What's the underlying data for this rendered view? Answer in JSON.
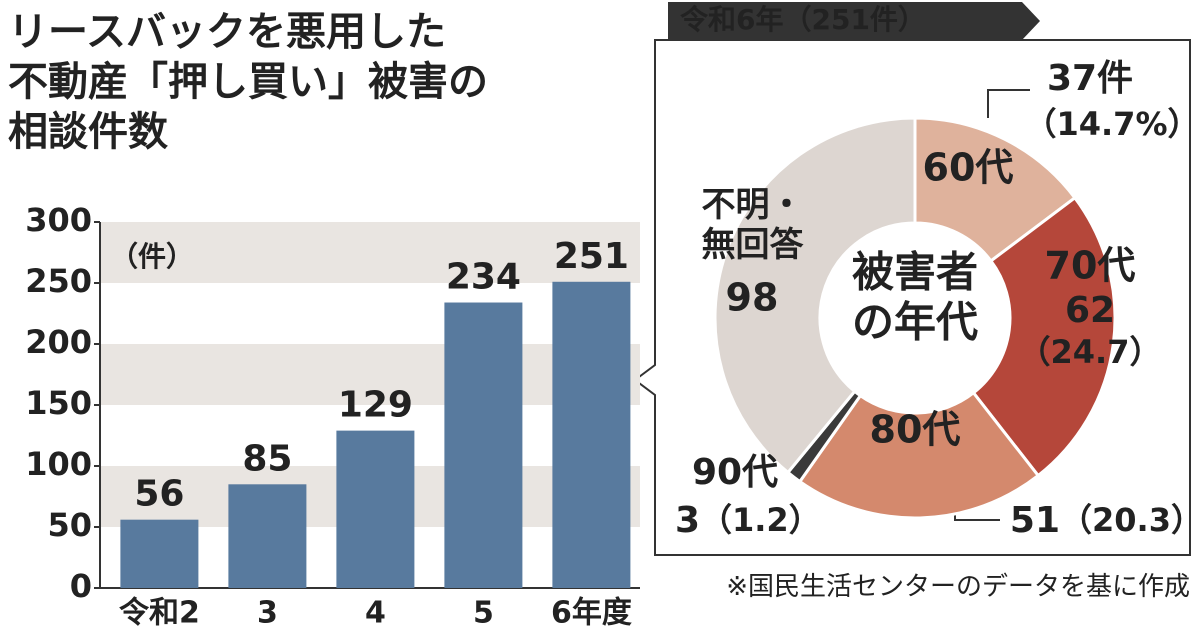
{
  "chart_data": [
    {
      "type": "bar",
      "title": [
        "リースバックを悪用した",
        "不動産「押し買い」被害の",
        "相談件数"
      ],
      "unit_label": "（件）",
      "categories": [
        "令和2",
        "3",
        "4",
        "5",
        "6年度"
      ],
      "values": [
        56,
        85,
        129,
        234,
        251
      ],
      "color": "#587a9e",
      "ylim": [
        0,
        300
      ],
      "yticks": [
        0,
        50,
        100,
        150,
        200,
        250,
        300
      ],
      "band_color": "#e9e5e1"
    },
    {
      "type": "donut",
      "title": "令和6年（251件）",
      "center_label": [
        "被害者",
        "の年代"
      ],
      "categories": [
        "60代",
        "70代",
        "80代",
        "90代",
        "不明・無回答"
      ],
      "values": [
        37,
        62,
        51,
        3,
        98
      ],
      "value_labels": [
        "37件",
        "62",
        "51",
        "3",
        "98"
      ],
      "percents": [
        14.7,
        24.7,
        20.3,
        1.2,
        null
      ],
      "percent_labels": [
        "（14.7%）",
        "（24.7）",
        "（20.3）",
        "（1.2）",
        null
      ],
      "colors": [
        "#dfb29c",
        "#b5473a",
        "#d4896d",
        "#3a3a3a",
        "#ddd6d1"
      ]
    }
  ],
  "source": "※国民生活センターのデータを基に作成"
}
